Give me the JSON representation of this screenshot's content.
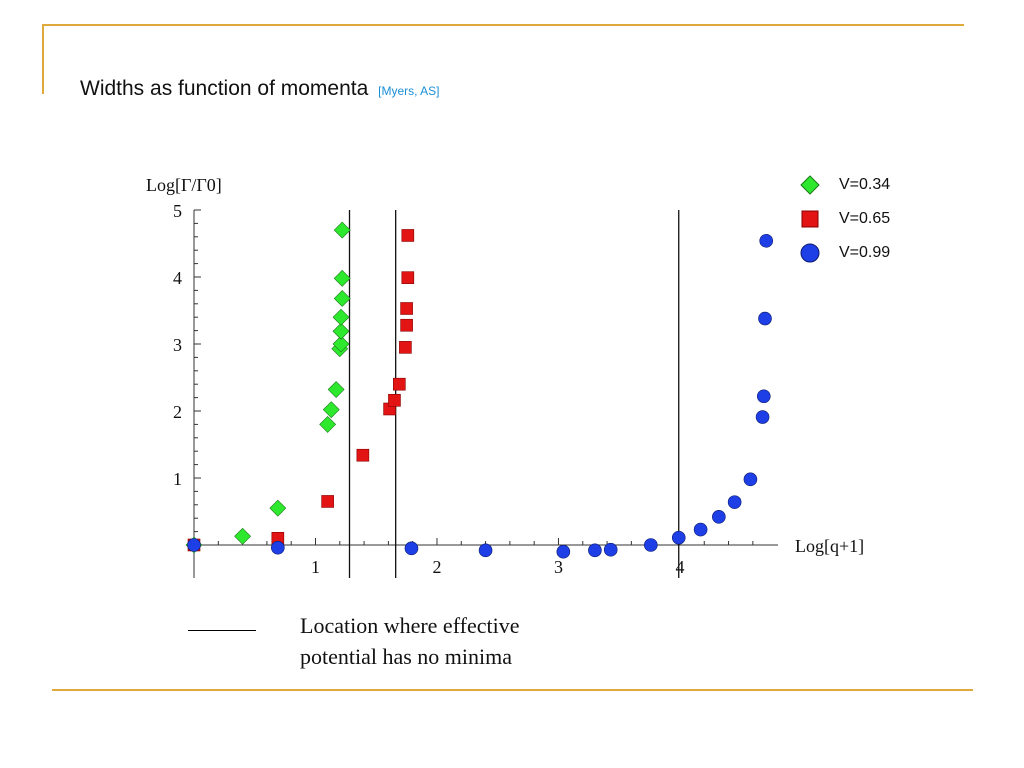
{
  "slide": {
    "title": "Widths as function of momenta",
    "citation": "[Myers, AS]"
  },
  "note": {
    "text_line1": "Location where effective",
    "text_line2": "potential has no minima"
  },
  "colors": {
    "frame": "#e0a93b",
    "citation": "#1a8fd6",
    "v034": "#2ee82e",
    "v065": "#e21414",
    "v099": "#1f3fe6"
  },
  "chart_data": {
    "type": "scatter",
    "title": "",
    "xlabel": "Log[q+1]",
    "ylabel": "Log[Γ/Γ0]",
    "xlim": [
      0,
      4.7
    ],
    "ylim": [
      -0.25,
      5
    ],
    "x_ticks": [
      1,
      2,
      3,
      4
    ],
    "y_ticks": [
      1,
      2,
      3,
      4,
      5
    ],
    "vertical_lines": [
      1.28,
      1.66,
      3.99
    ],
    "legend_position": "top-right",
    "grid": false,
    "series": [
      {
        "name": "V=0.34",
        "marker": "diamond",
        "color": "#2ee82e",
        "points": [
          [
            0.0,
            0.0
          ],
          [
            0.4,
            0.13
          ],
          [
            0.69,
            0.55
          ],
          [
            1.1,
            1.8
          ],
          [
            1.13,
            2.02
          ],
          [
            1.17,
            2.32
          ],
          [
            1.2,
            2.93
          ],
          [
            1.21,
            3.0
          ],
          [
            1.21,
            3.19
          ],
          [
            1.21,
            3.4
          ],
          [
            1.22,
            3.68
          ],
          [
            1.22,
            3.98
          ],
          [
            1.22,
            4.7
          ]
        ]
      },
      {
        "name": "V=0.65",
        "marker": "square",
        "color": "#e21414",
        "points": [
          [
            0.0,
            0.0
          ],
          [
            0.69,
            0.1
          ],
          [
            1.1,
            0.65
          ],
          [
            1.39,
            1.34
          ],
          [
            1.61,
            2.03
          ],
          [
            1.65,
            2.16
          ],
          [
            1.69,
            2.4
          ],
          [
            1.74,
            2.95
          ],
          [
            1.75,
            3.28
          ],
          [
            1.75,
            3.53
          ],
          [
            1.76,
            3.99
          ],
          [
            1.76,
            4.62
          ]
        ]
      },
      {
        "name": "V=0.99",
        "marker": "circle",
        "color": "#1f3fe6",
        "points": [
          [
            0.0,
            0.0
          ],
          [
            0.69,
            -0.04
          ],
          [
            1.79,
            -0.05
          ],
          [
            2.4,
            -0.08
          ],
          [
            3.04,
            -0.1
          ],
          [
            3.3,
            -0.08
          ],
          [
            3.43,
            -0.07
          ],
          [
            3.76,
            0.0
          ],
          [
            3.99,
            0.11
          ],
          [
            4.17,
            0.23
          ],
          [
            4.32,
            0.42
          ],
          [
            4.45,
            0.64
          ],
          [
            4.58,
            0.98
          ],
          [
            4.68,
            1.91
          ],
          [
            4.69,
            2.22
          ],
          [
            4.7,
            3.38
          ],
          [
            4.71,
            4.54
          ]
        ]
      }
    ]
  }
}
